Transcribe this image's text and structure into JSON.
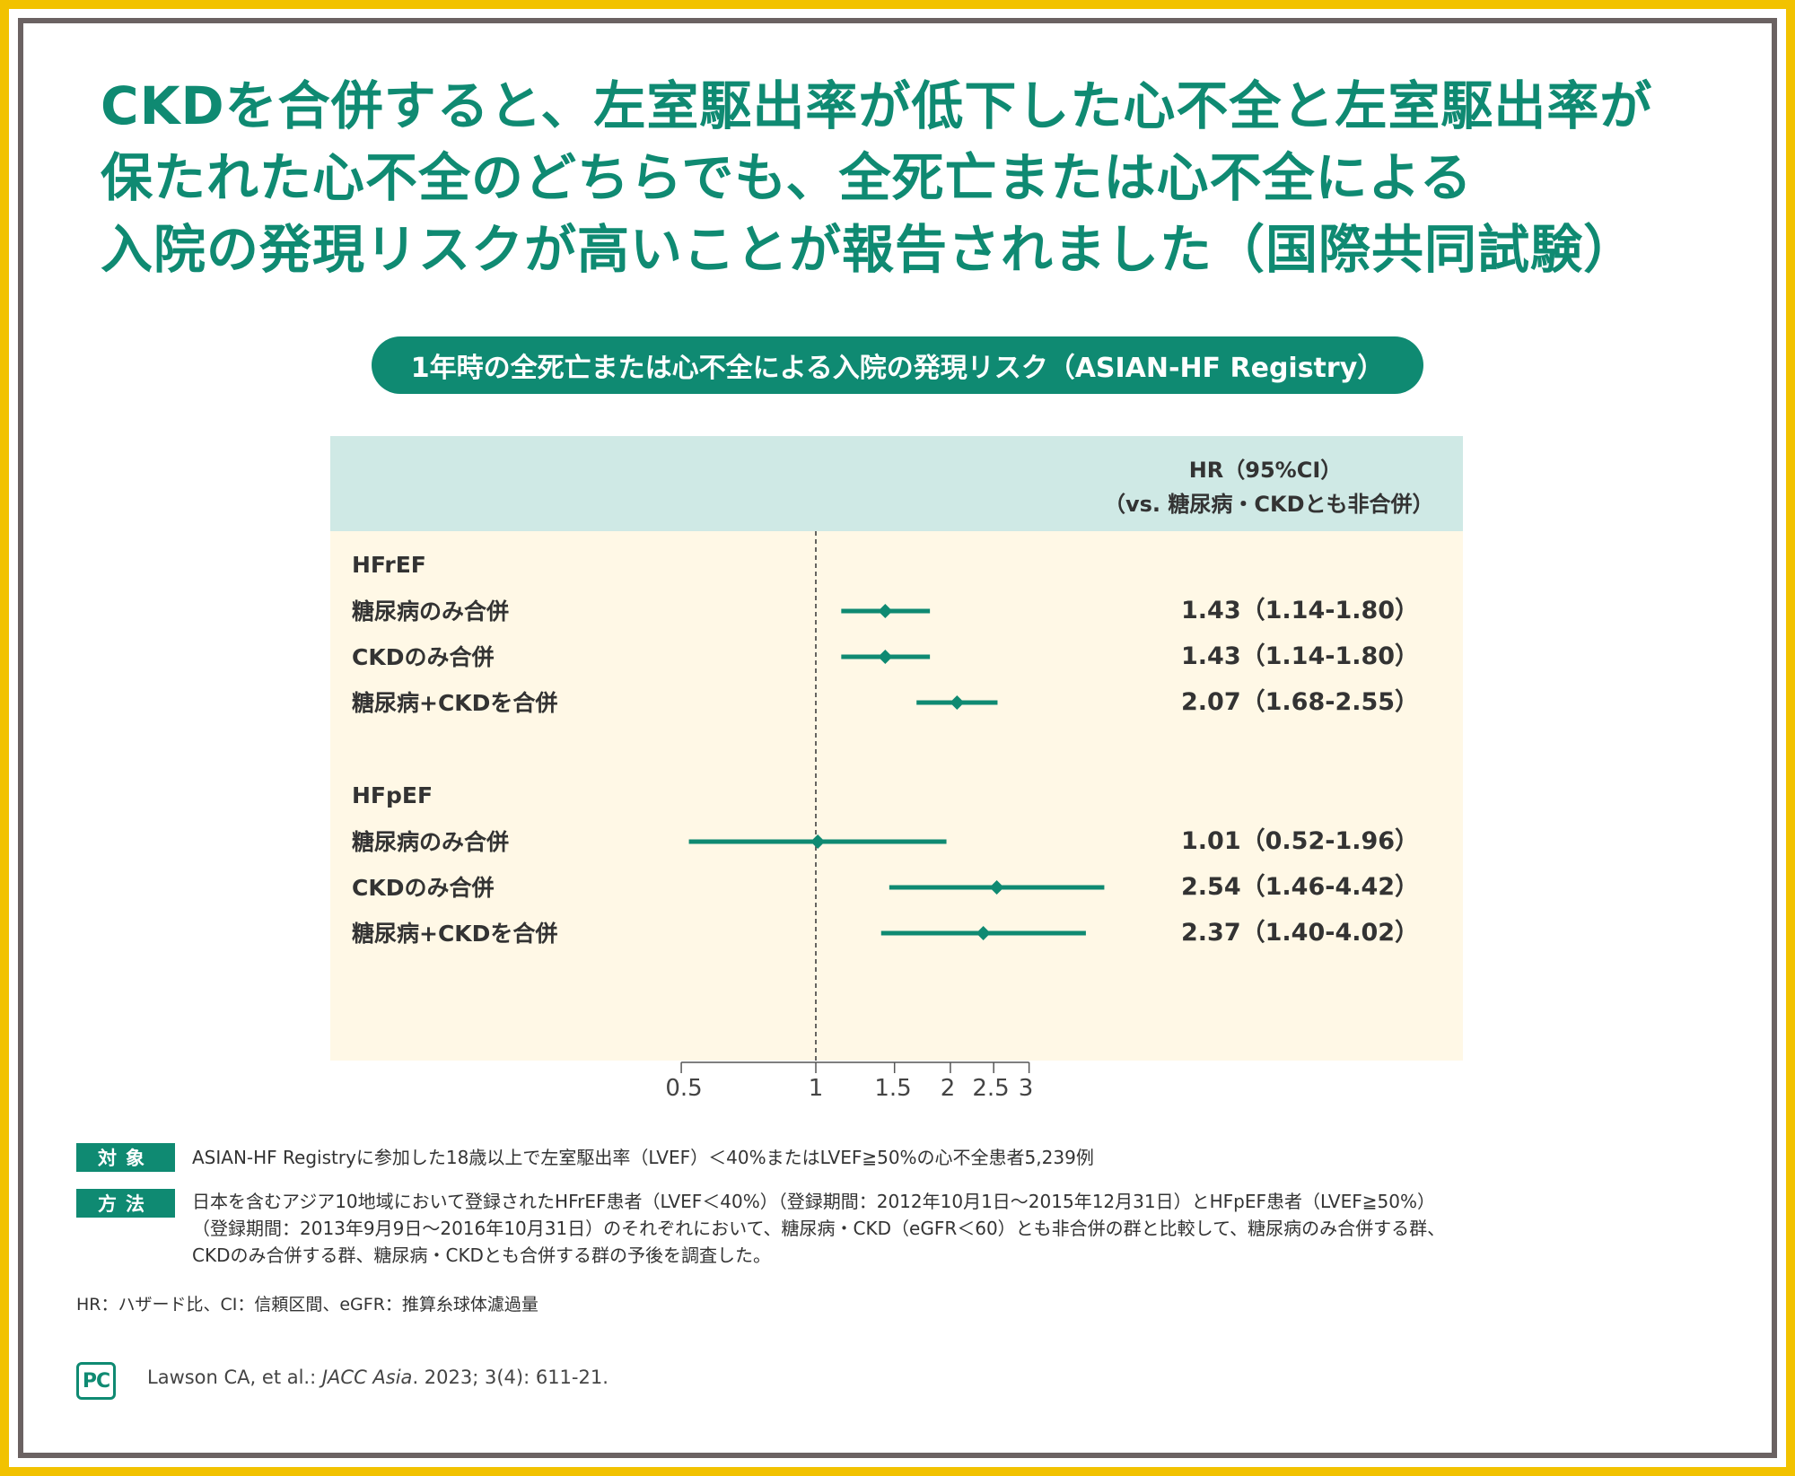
{
  "headline": {
    "line1": "CKDを合併すると、左室駆出率が低下した心不全と左室駆出率が",
    "line2": "保たれた心不全のどちらでも、全死亡または心不全による",
    "line3": "入院の発現リスクが高いことが報告されました（国際共同試験）"
  },
  "chart_data": {
    "type": "forest",
    "title": "1年時の全死亡または心不全による入院の発現リスク（ASIAN-HF Registry）",
    "column_header": {
      "line1": "HR（95%CI）",
      "line2": "（vs. 糖尿病・CKDとも非合併）"
    },
    "x_scale": "log",
    "xlim": [
      0.5,
      3
    ],
    "x_ticks": [
      "0.5",
      "1",
      "1.5",
      "2",
      "2.5",
      "3"
    ],
    "reference_line": 1,
    "groups": [
      {
        "name": "HFrEF",
        "rows": [
          {
            "label": "糖尿病のみ合併",
            "hr": 1.43,
            "lower": 1.14,
            "upper": 1.8,
            "text": "1.43（1.14-1.80）"
          },
          {
            "label": "CKDのみ合併",
            "hr": 1.43,
            "lower": 1.14,
            "upper": 1.8,
            "text": "1.43（1.14-1.80）"
          },
          {
            "label": "糖尿病+CKDを合併",
            "hr": 2.07,
            "lower": 1.68,
            "upper": 2.55,
            "text": "2.07（1.68-2.55）"
          }
        ]
      },
      {
        "name": "HFpEF",
        "rows": [
          {
            "label": "糖尿病のみ合併",
            "hr": 1.01,
            "lower": 0.52,
            "upper": 1.96,
            "text": "1.01（0.52-1.96）"
          },
          {
            "label": "CKDのみ合併",
            "hr": 2.54,
            "lower": 1.46,
            "upper": 4.42,
            "text": "2.54（1.46-4.42）"
          },
          {
            "label": "糖尿病+CKDを合併",
            "hr": 2.37,
            "lower": 1.4,
            "upper": 4.02,
            "text": "2.37（1.40-4.02）"
          }
        ]
      }
    ],
    "colors": {
      "marker": "#0f8a72",
      "header_band": "#cfe9e5",
      "plot_background": "#fff8e6"
    }
  },
  "notes": {
    "target": {
      "badge": "対象",
      "text": "ASIAN-HF Registryに参加した18歳以上で左室駆出率（LVEF）＜40%またはLVEF≧50%の心不全患者5,239例"
    },
    "method": {
      "badge": "方法",
      "line1": "日本を含むアジア10地域において登録されたHFrEF患者（LVEF＜40%）（登録期間：2012年10月1日～2015年12月31日）とHFpEF患者（LVEF≧50%）",
      "line2": "（登録期間：2013年9月9日～2016年10月31日）のそれぞれにおいて、糖尿病・CKD（eGFR＜60）とも非合併の群と比較して、糖尿病のみ合併する群、",
      "line3": "CKDのみ合併する群、糖尿病・CKDとも合併する群の予後を調査した。"
    },
    "abbreviations": "HR：ハザード比、CI：信頼区間、eGFR：推算糸球体濾過量"
  },
  "footer": {
    "logo_text": "PC",
    "citation_authors": "Lawson CA, et al.: ",
    "citation_journal": "JACC Asia",
    "citation_rest": ". 2023; 3(4): 611-21."
  },
  "colors": {
    "brand_green": "#0f8a72",
    "frame_yellow": "#f2c200",
    "frame_gray": "#6b6262"
  }
}
